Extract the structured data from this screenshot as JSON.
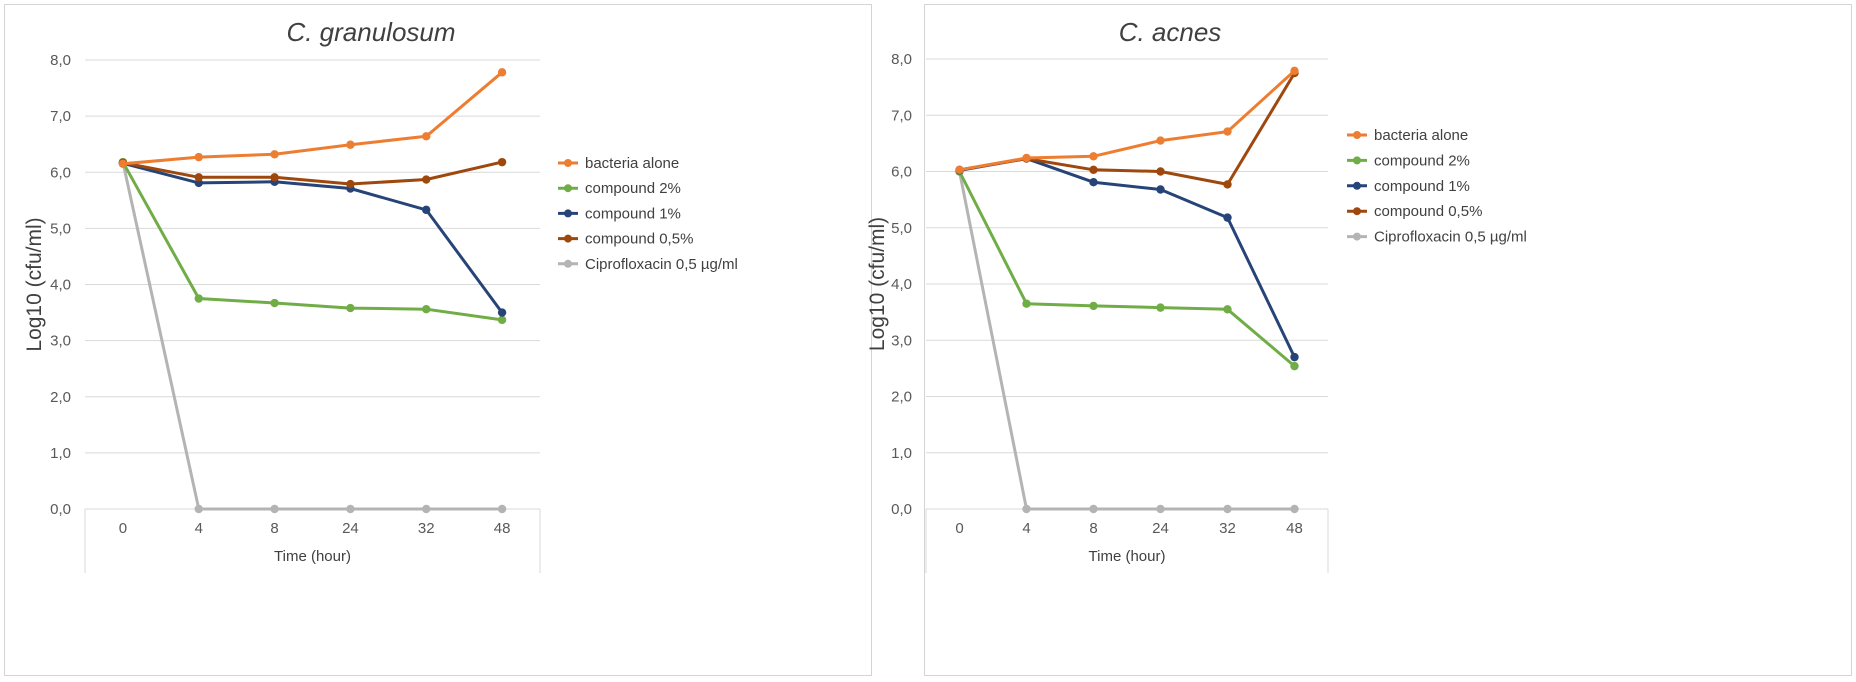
{
  "colors": {
    "bacteria_alone": "#ED7D31",
    "compound_2": "#70AD47",
    "compound_1": "#264478",
    "compound_05": "#9E480E",
    "cipro": "#B4B4B4"
  },
  "chart_data": [
    {
      "type": "line",
      "title": "C. granulosum",
      "xlabel": "Time (hour)",
      "ylabel": "Log10 (cfu/ml)",
      "ylim": [
        0,
        8
      ],
      "yticks": [
        "0,0",
        "1,0",
        "2,0",
        "3,0",
        "4,0",
        "5,0",
        "6,0",
        "7,0",
        "8,0"
      ],
      "categories": [
        "0",
        "4",
        "8",
        "24",
        "32",
        "48"
      ],
      "grid": true,
      "legend_position": "right",
      "series": [
        {
          "name": "bacteria alone",
          "color": "#ED7D31",
          "values": [
            6.15,
            6.27,
            6.32,
            6.49,
            6.64,
            7.78
          ]
        },
        {
          "name": "compound 2%",
          "color": "#70AD47",
          "values": [
            6.18,
            3.75,
            3.67,
            3.58,
            3.56,
            3.37
          ]
        },
        {
          "name": "compound 1%",
          "color": "#264478",
          "values": [
            6.16,
            5.81,
            5.83,
            5.71,
            5.33,
            3.5
          ]
        },
        {
          "name": "compound 0,5%",
          "color": "#9E480E",
          "values": [
            6.17,
            5.91,
            5.91,
            5.79,
            5.87,
            6.18
          ]
        },
        {
          "name": "Ciprofloxacin 0,5 µg/ml",
          "color": "#B4B4B4",
          "values": [
            6.18,
            0,
            0,
            0,
            0,
            0
          ]
        }
      ]
    },
    {
      "type": "line",
      "title": "C. acnes",
      "xlabel": "Time (hour)",
      "ylabel": "Log10 (cfu/ml)",
      "ylim": [
        0,
        8
      ],
      "yticks": [
        "0,0",
        "1,0",
        "2,0",
        "3,0",
        "4,0",
        "5,0",
        "6,0",
        "7,0",
        "8,0"
      ],
      "categories": [
        "0",
        "4",
        "8",
        "24",
        "32",
        "48"
      ],
      "grid": true,
      "legend_position": "right",
      "series": [
        {
          "name": "bacteria alone",
          "color": "#ED7D31",
          "values": [
            6.03,
            6.24,
            6.27,
            6.55,
            6.71,
            7.79
          ]
        },
        {
          "name": "compound  2%",
          "color": "#70AD47",
          "values": [
            6.0,
            3.65,
            3.61,
            3.58,
            3.55,
            2.54
          ]
        },
        {
          "name": "compound  1%",
          "color": "#264478",
          "values": [
            6.02,
            6.23,
            5.81,
            5.68,
            5.18,
            2.7
          ]
        },
        {
          "name": "compound  0,5%",
          "color": "#9E480E",
          "values": [
            6.03,
            6.23,
            6.03,
            6.0,
            5.77,
            7.75
          ]
        },
        {
          "name": "Ciprofloxacin 0,5 µg/ml",
          "color": "#B4B4B4",
          "values": [
            6.0,
            0,
            0,
            0,
            0,
            0
          ]
        }
      ]
    }
  ]
}
